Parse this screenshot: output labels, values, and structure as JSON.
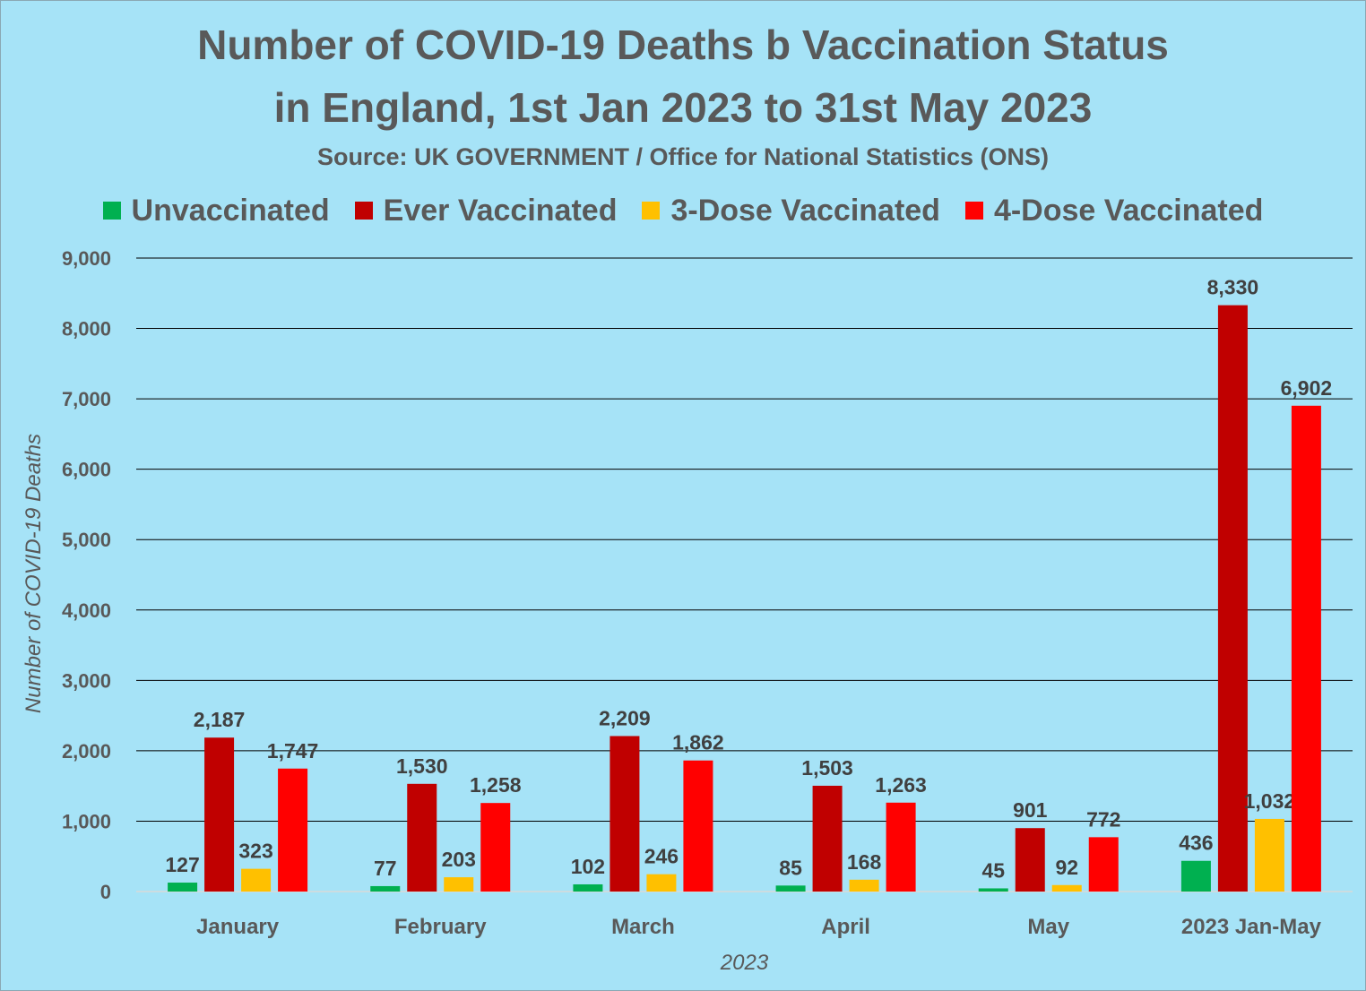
{
  "title_line1": "Number of COVID-19 Deaths b Vaccination Status",
  "title_line2": "in England, 1st Jan 2023 to 31st May 2023",
  "subtitle": "Source: UK GOVERNMENT / Office for National Statistics (ONS)",
  "colors": {
    "Unvaccinated": "#00b050",
    "Ever Vaccinated": "#c00000",
    "3-Dose Vaccinated": "#ffc000",
    "4-Dose Vaccinated": "#ff0000"
  },
  "chart_data": {
    "type": "bar",
    "categories": [
      "January",
      "February",
      "March",
      "April",
      "May",
      "2023 Jan-May"
    ],
    "series": [
      {
        "name": "Unvaccinated",
        "values": [
          127,
          77,
          102,
          85,
          45,
          436
        ],
        "labels": [
          "127",
          "77",
          "102",
          "85",
          "45",
          "436"
        ]
      },
      {
        "name": "Ever Vaccinated",
        "values": [
          2187,
          1530,
          2209,
          1503,
          901,
          8330
        ],
        "labels": [
          "2,187",
          "1,530",
          "2,209",
          "1,503",
          "901",
          "8,330"
        ]
      },
      {
        "name": "3-Dose Vaccinated",
        "values": [
          323,
          203,
          246,
          168,
          92,
          1032
        ],
        "labels": [
          "323",
          "203",
          "246",
          "168",
          "92",
          "1,032"
        ]
      },
      {
        "name": "4-Dose Vaccinated",
        "values": [
          1747,
          1258,
          1862,
          1263,
          772,
          6902
        ],
        "labels": [
          "1,747",
          "1,258",
          "1,862",
          "1,263",
          "772",
          "6,902"
        ]
      }
    ],
    "ylim": [
      0,
      9000
    ],
    "yticks": [
      0,
      1000,
      2000,
      3000,
      4000,
      5000,
      6000,
      7000,
      8000,
      9000
    ],
    "ytick_labels": [
      "0",
      "1,000",
      "2,000",
      "3,000",
      "4,000",
      "5,000",
      "6,000",
      "7,000",
      "8,000",
      "9,000"
    ],
    "xlabel": "2023",
    "ylabel": "Number of COVID-19 Deaths",
    "grid": true,
    "legend_position": "top"
  }
}
